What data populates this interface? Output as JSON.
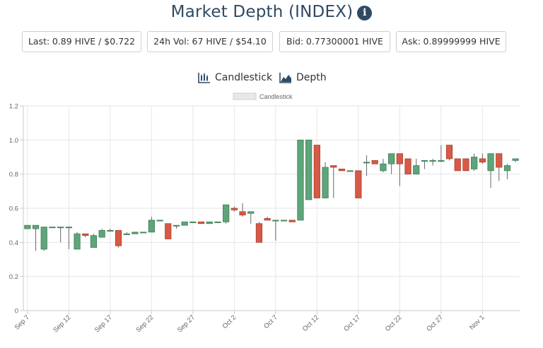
{
  "header": {
    "title": "Market Depth (INDEX)",
    "info_icon": "info-circle-icon"
  },
  "stats": {
    "last_label": "Last:",
    "last_value": "0.89 HIVE / $0.722",
    "vol_label": "24h Vol:",
    "vol_value": "67 HIVE / $54.10",
    "bid_label": "Bid:",
    "bid_value": "0.77300001 HIVE",
    "ask_label": "Ask:",
    "ask_value": "0.89999999 HIVE"
  },
  "tabs": {
    "candlestick": "Candlestick",
    "candlestick_icon": "candlestick-chart-icon",
    "depth": "Depth",
    "depth_icon": "area-chart-icon"
  },
  "colors": {
    "up": "#5fa47a",
    "down": "#d65a47",
    "grid": "#e6e6e6",
    "title": "#2f4a63"
  },
  "chart_data": {
    "type": "candlestick",
    "legend": [
      "Candlestick"
    ],
    "legend_position": "top",
    "grid": true,
    "ylim": [
      0,
      1.2
    ],
    "yticks": [
      0,
      0.2,
      0.4,
      0.6,
      0.8,
      1.0,
      1.2
    ],
    "ytick_labels": [
      "0",
      "0.2",
      "0.4",
      "0.6",
      "0.8",
      "1.0",
      "1.2"
    ],
    "xlim": [
      "Sep 7",
      "Nov 5"
    ],
    "xtick_labels": [
      "Sep 7",
      "Sep 12",
      "Sep 17",
      "Sep 22",
      "Sep 27",
      "Oct 2",
      "Oct 7",
      "Oct 12",
      "Oct 17",
      "Oct 22",
      "Oct 27",
      "Nov 1"
    ],
    "candles": [
      {
        "date": "Sep 7",
        "open": 0.48,
        "high": 0.5,
        "low": 0.48,
        "close": 0.5
      },
      {
        "date": "Sep 8",
        "open": 0.48,
        "high": 0.5,
        "low": 0.35,
        "close": 0.5
      },
      {
        "date": "Sep 9",
        "open": 0.36,
        "high": 0.49,
        "low": 0.35,
        "close": 0.49
      },
      {
        "date": "Sep 10",
        "open": 0.49,
        "high": 0.49,
        "low": 0.49,
        "close": 0.49
      },
      {
        "date": "Sep 11",
        "open": 0.49,
        "high": 0.49,
        "low": 0.4,
        "close": 0.49
      },
      {
        "date": "Sep 12",
        "open": 0.49,
        "high": 0.49,
        "low": 0.36,
        "close": 0.49
      },
      {
        "date": "Sep 13",
        "open": 0.36,
        "high": 0.46,
        "low": 0.36,
        "close": 0.45
      },
      {
        "date": "Sep 14",
        "open": 0.45,
        "high": 0.45,
        "low": 0.43,
        "close": 0.44
      },
      {
        "date": "Sep 15",
        "open": 0.37,
        "high": 0.45,
        "low": 0.37,
        "close": 0.44
      },
      {
        "date": "Sep 16",
        "open": 0.43,
        "high": 0.48,
        "low": 0.43,
        "close": 0.47
      },
      {
        "date": "Sep 17",
        "open": 0.47,
        "high": 0.48,
        "low": 0.47,
        "close": 0.47
      },
      {
        "date": "Sep 18",
        "open": 0.47,
        "high": 0.47,
        "low": 0.37,
        "close": 0.38
      },
      {
        "date": "Sep 19",
        "open": 0.45,
        "high": 0.46,
        "low": 0.45,
        "close": 0.45
      },
      {
        "date": "Sep 20",
        "open": 0.45,
        "high": 0.46,
        "low": 0.45,
        "close": 0.46
      },
      {
        "date": "Sep 21",
        "open": 0.46,
        "high": 0.46,
        "low": 0.46,
        "close": 0.46
      },
      {
        "date": "Sep 22",
        "open": 0.46,
        "high": 0.55,
        "low": 0.46,
        "close": 0.53
      },
      {
        "date": "Sep 23",
        "open": 0.53,
        "high": 0.53,
        "low": 0.53,
        "close": 0.53
      },
      {
        "date": "Sep 24",
        "open": 0.51,
        "high": 0.51,
        "low": 0.42,
        "close": 0.42
      },
      {
        "date": "Sep 25",
        "open": 0.5,
        "high": 0.5,
        "low": 0.48,
        "close": 0.5
      },
      {
        "date": "Sep 26",
        "open": 0.5,
        "high": 0.52,
        "low": 0.5,
        "close": 0.52
      },
      {
        "date": "Sep 27",
        "open": 0.52,
        "high": 0.52,
        "low": 0.52,
        "close": 0.52
      },
      {
        "date": "Sep 28",
        "open": 0.52,
        "high": 0.52,
        "low": 0.51,
        "close": 0.51
      },
      {
        "date": "Sep 29",
        "open": 0.51,
        "high": 0.52,
        "low": 0.51,
        "close": 0.52
      },
      {
        "date": "Sep 30",
        "open": 0.52,
        "high": 0.52,
        "low": 0.52,
        "close": 0.52
      },
      {
        "date": "Oct 1",
        "open": 0.52,
        "high": 0.62,
        "low": 0.51,
        "close": 0.62
      },
      {
        "date": "Oct 2",
        "open": 0.6,
        "high": 0.61,
        "low": 0.58,
        "close": 0.59
      },
      {
        "date": "Oct 3",
        "open": 0.58,
        "high": 0.63,
        "low": 0.55,
        "close": 0.56
      },
      {
        "date": "Oct 4",
        "open": 0.57,
        "high": 0.58,
        "low": 0.51,
        "close": 0.58
      },
      {
        "date": "Oct 5",
        "open": 0.51,
        "high": 0.52,
        "low": 0.4,
        "close": 0.4
      },
      {
        "date": "Oct 6",
        "open": 0.54,
        "high": 0.55,
        "low": 0.53,
        "close": 0.53
      },
      {
        "date": "Oct 7",
        "open": 0.53,
        "high": 0.53,
        "low": 0.41,
        "close": 0.53
      },
      {
        "date": "Oct 8",
        "open": 0.53,
        "high": 0.53,
        "low": 0.53,
        "close": 0.53
      },
      {
        "date": "Oct 9",
        "open": 0.53,
        "high": 0.53,
        "low": 0.52,
        "close": 0.52
      },
      {
        "date": "Oct 10",
        "open": 0.53,
        "high": 1.0,
        "low": 0.53,
        "close": 1.0
      },
      {
        "date": "Oct 11",
        "open": 0.65,
        "high": 1.0,
        "low": 0.65,
        "close": 1.0
      },
      {
        "date": "Oct 12",
        "open": 0.97,
        "high": 0.97,
        "low": 0.66,
        "close": 0.66
      },
      {
        "date": "Oct 13",
        "open": 0.66,
        "high": 0.87,
        "low": 0.66,
        "close": 0.84
      },
      {
        "date": "Oct 14",
        "open": 0.85,
        "high": 0.85,
        "low": 0.66,
        "close": 0.84
      },
      {
        "date": "Oct 15",
        "open": 0.83,
        "high": 0.83,
        "low": 0.82,
        "close": 0.82
      },
      {
        "date": "Oct 16",
        "open": 0.82,
        "high": 0.82,
        "low": 0.82,
        "close": 0.82
      },
      {
        "date": "Oct 17",
        "open": 0.82,
        "high": 0.82,
        "low": 0.66,
        "close": 0.66
      },
      {
        "date": "Oct 18",
        "open": 0.87,
        "high": 0.91,
        "low": 0.79,
        "close": 0.87
      },
      {
        "date": "Oct 19",
        "open": 0.88,
        "high": 0.88,
        "low": 0.86,
        "close": 0.86
      },
      {
        "date": "Oct 20",
        "open": 0.82,
        "high": 0.89,
        "low": 0.81,
        "close": 0.86
      },
      {
        "date": "Oct 21",
        "open": 0.86,
        "high": 0.92,
        "low": 0.8,
        "close": 0.92
      },
      {
        "date": "Oct 22",
        "open": 0.92,
        "high": 0.92,
        "low": 0.73,
        "close": 0.86
      },
      {
        "date": "Oct 23",
        "open": 0.89,
        "high": 0.89,
        "low": 0.8,
        "close": 0.8
      },
      {
        "date": "Oct 24",
        "open": 0.8,
        "high": 0.89,
        "low": 0.8,
        "close": 0.85
      },
      {
        "date": "Oct 25",
        "open": 0.88,
        "high": 0.88,
        "low": 0.83,
        "close": 0.88
      },
      {
        "date": "Oct 26",
        "open": 0.88,
        "high": 0.89,
        "low": 0.85,
        "close": 0.88
      },
      {
        "date": "Oct 27",
        "open": 0.88,
        "high": 0.97,
        "low": 0.87,
        "close": 0.88
      },
      {
        "date": "Oct 28",
        "open": 0.97,
        "high": 0.97,
        "low": 0.88,
        "close": 0.89
      },
      {
        "date": "Oct 29",
        "open": 0.89,
        "high": 0.89,
        "low": 0.82,
        "close": 0.82
      },
      {
        "date": "Oct 30",
        "open": 0.89,
        "high": 0.89,
        "low": 0.82,
        "close": 0.82
      },
      {
        "date": "Oct 31",
        "open": 0.83,
        "high": 0.92,
        "low": 0.82,
        "close": 0.9
      },
      {
        "date": "Nov 1",
        "open": 0.89,
        "high": 0.92,
        "low": 0.86,
        "close": 0.87
      },
      {
        "date": "Nov 2",
        "open": 0.82,
        "high": 0.92,
        "low": 0.72,
        "close": 0.92
      },
      {
        "date": "Nov 3",
        "open": 0.92,
        "high": 0.92,
        "low": 0.76,
        "close": 0.84
      },
      {
        "date": "Nov 4",
        "open": 0.82,
        "high": 0.86,
        "low": 0.77,
        "close": 0.85
      },
      {
        "date": "Nov 5",
        "open": 0.88,
        "high": 0.89,
        "low": 0.87,
        "close": 0.89
      }
    ]
  }
}
